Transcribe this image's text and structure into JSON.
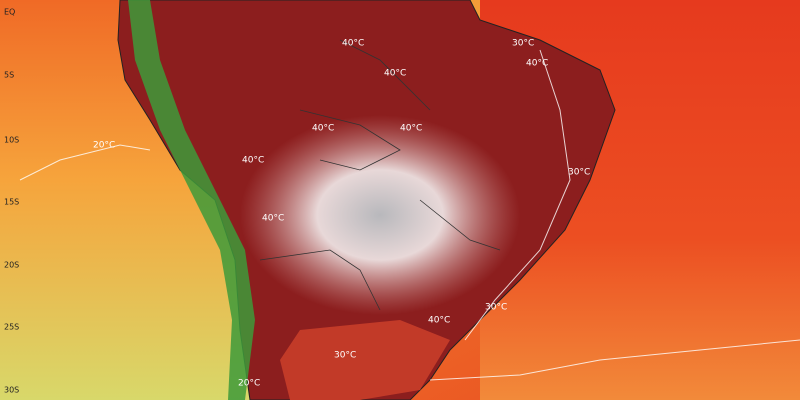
{
  "map": {
    "latitude_labels": [
      "EQ",
      "5S",
      "10S",
      "15S",
      "20S",
      "25S",
      "30S"
    ],
    "contour_labels": [
      "40°C",
      "30°C",
      "40°C",
      "40°C",
      "40°C",
      "40°C",
      "20°C",
      "40°C",
      "30°C",
      "40°C",
      "30°C",
      "40°C",
      "30°C",
      "20°C"
    ]
  }
}
